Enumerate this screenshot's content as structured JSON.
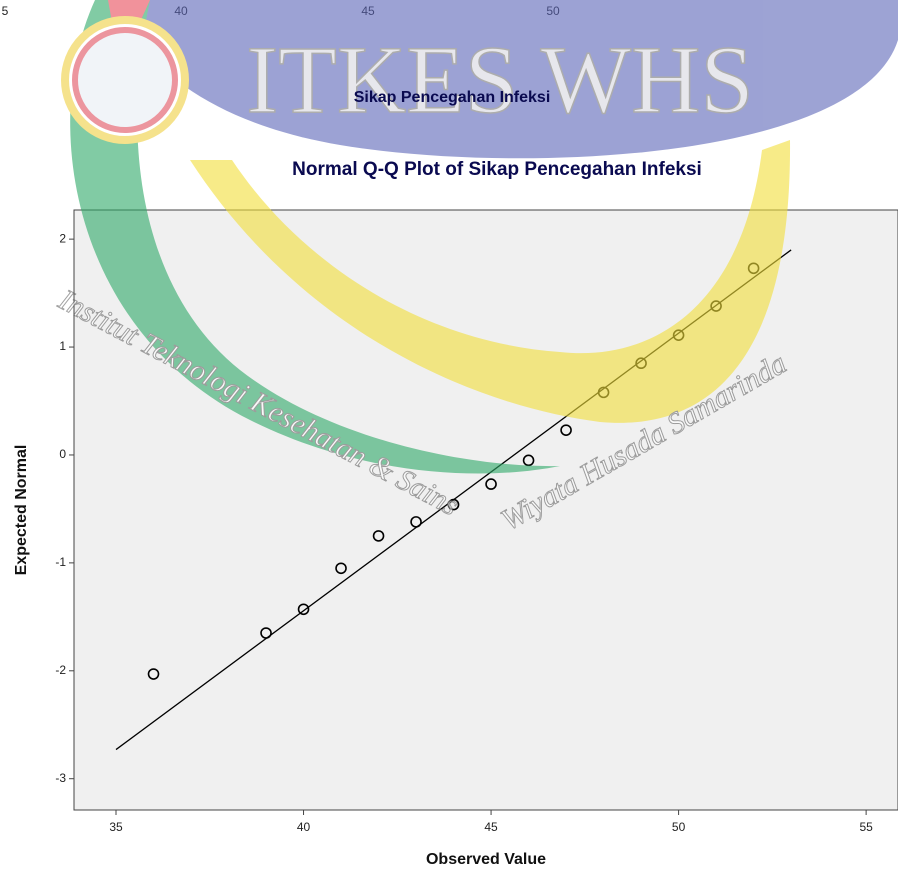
{
  "chart_data": {
    "type": "scatter",
    "title": "Normal Q-Q Plot of Sikap Pencegahan Infeksi",
    "x_label": "Observed Value",
    "y_label": "Expected Normal",
    "x": [
      36,
      39,
      40,
      41,
      42,
      43,
      44,
      45,
      46,
      47,
      48,
      49,
      50,
      51,
      52
    ],
    "values": [
      -2.03,
      -1.65,
      -1.43,
      -1.05,
      -0.75,
      -0.62,
      -0.46,
      -0.27,
      -0.05,
      0.23,
      0.58,
      0.85,
      1.11,
      1.38,
      1.73
    ],
    "color": "#000000",
    "reference_line": {
      "x": [
        35,
        53
      ],
      "y": [
        -2.73,
        1.9
      ],
      "color": "#000000"
    },
    "xlim": [
      33.88,
      55.85
    ],
    "ylim": [
      -3.29,
      2.27
    ],
    "xticks": [
      35,
      40,
      45,
      50,
      55
    ],
    "yticks": [
      -3,
      -2,
      -1,
      0,
      1,
      2
    ],
    "background": "#f0f0f0"
  },
  "header": {
    "fragment_labels": [
      "5",
      "40",
      "45",
      "50"
    ],
    "subtitle": "Sikap Pencegahan Infeksi"
  },
  "watermark": {
    "logo_text": "ITKES WHS",
    "line1": "Institut Teknologi Kesehatan & Sains",
    "line2": "Wiyata Husada Samarinda"
  }
}
